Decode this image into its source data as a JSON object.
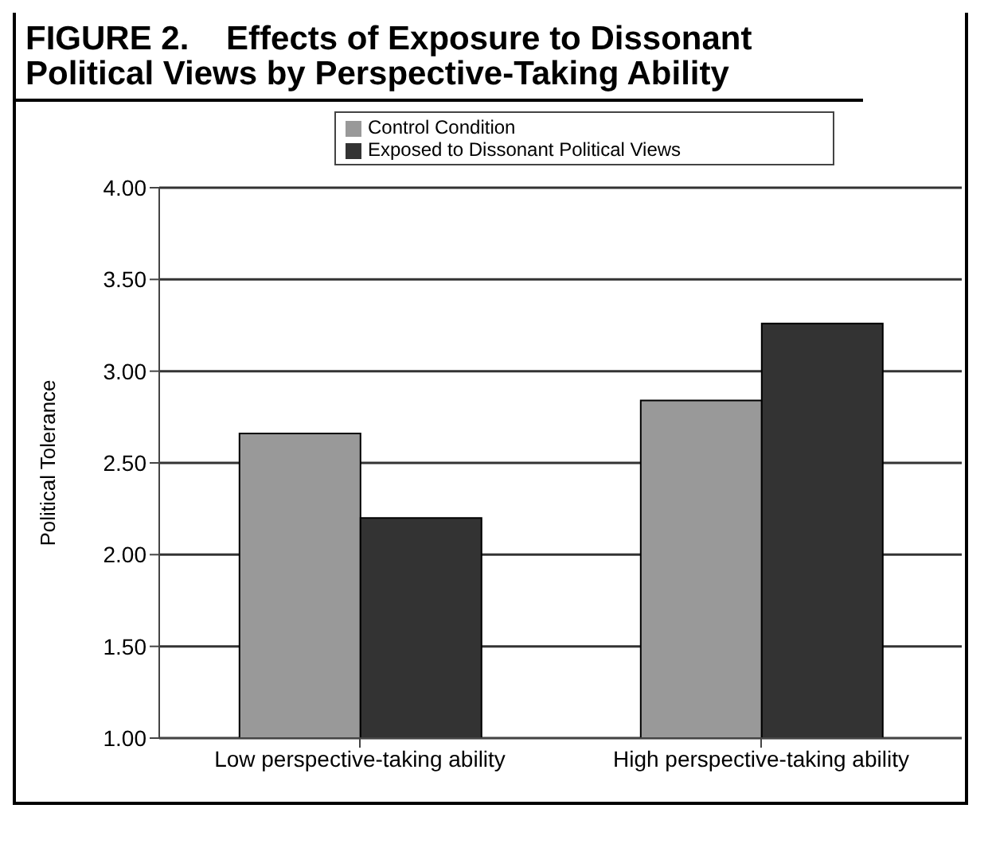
{
  "chart_data": {
    "type": "bar",
    "title": "FIGURE 2.    Effects of Exposure to Dissonant Political Views by Perspective-Taking Ability",
    "ylabel": "Political Tolerance",
    "categories": [
      "Low perspective-taking ability",
      "High perspective-taking ability"
    ],
    "series": [
      {
        "name": "Control Condition",
        "color": "#999999",
        "values": [
          2.66,
          2.84
        ]
      },
      {
        "name": "Exposed to Dissonant Political Views",
        "color": "#333333",
        "values": [
          2.2,
          3.26
        ]
      }
    ],
    "ylim": [
      1,
      4
    ],
    "yticks": [
      {
        "value": 1,
        "label": "1.00"
      },
      {
        "value": 1.5,
        "label": "1.50"
      },
      {
        "value": 2,
        "label": "2.00"
      },
      {
        "value": 2.5,
        "label": "2.50"
      },
      {
        "value": 3,
        "label": "3.00"
      },
      {
        "value": 3.5,
        "label": "3.50"
      },
      {
        "value": 4,
        "label": "4.00"
      }
    ],
    "grid": "y",
    "legend": "top"
  }
}
